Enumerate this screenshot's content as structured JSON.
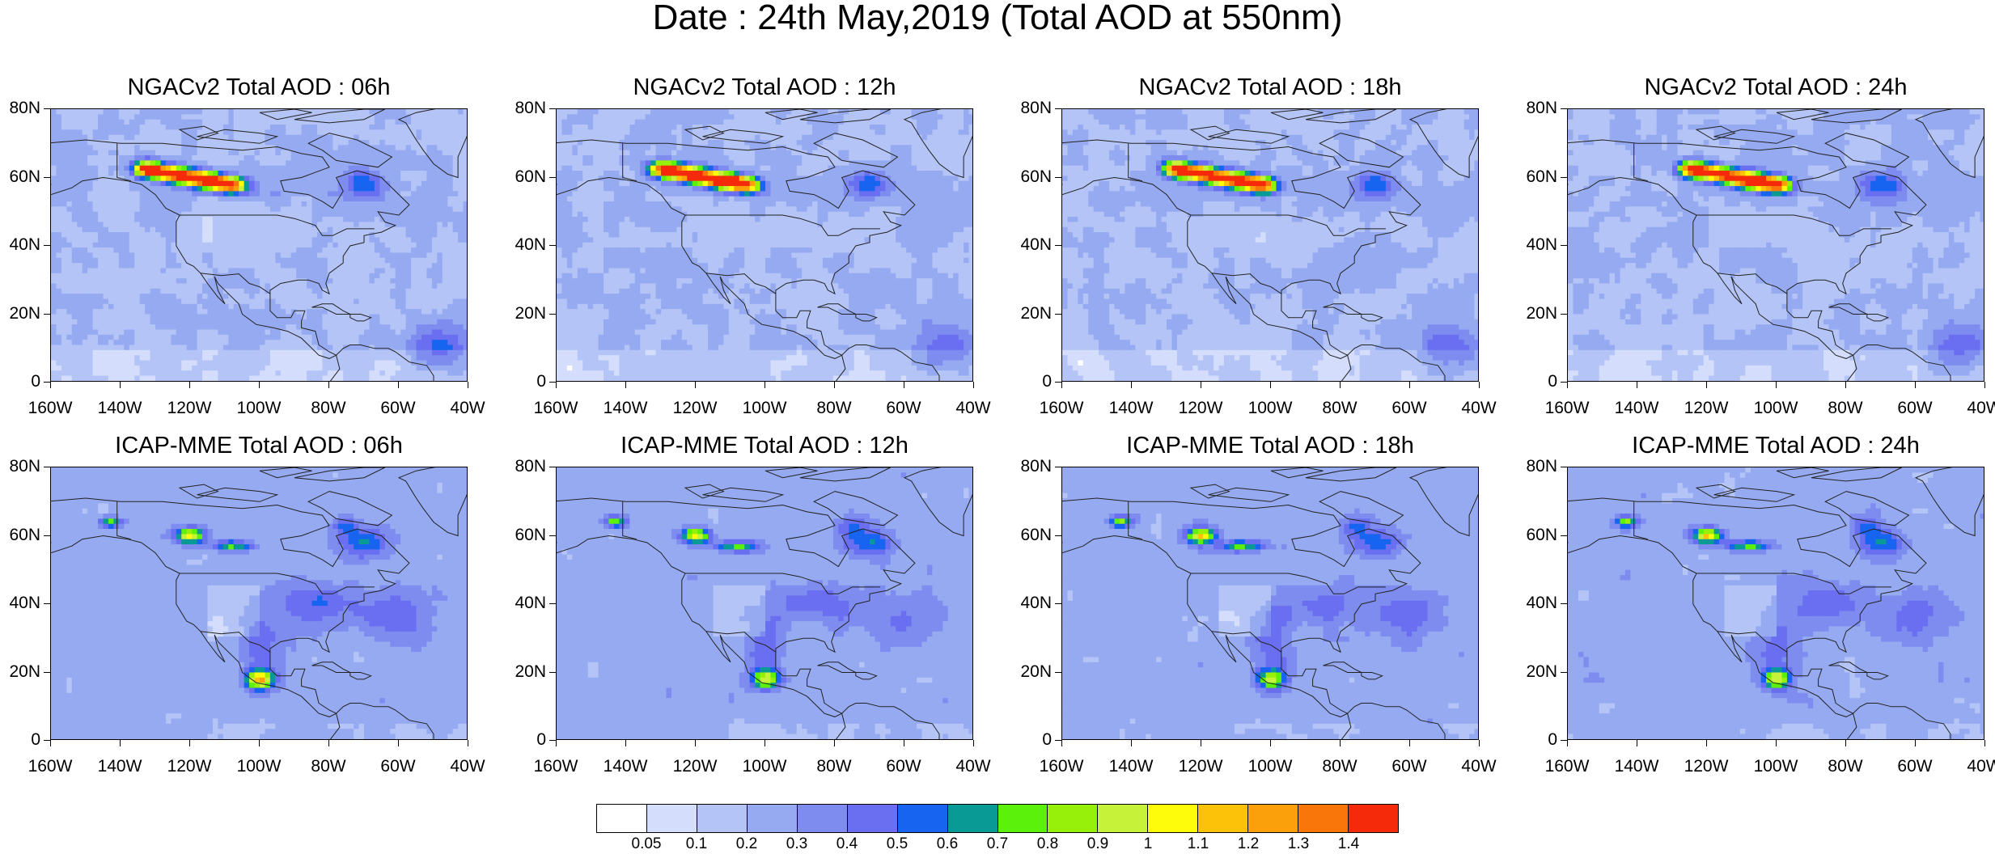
{
  "figure_title": "Date : 24th May,2019 (Total AOD at 550nm)",
  "panels": [
    {
      "title": "NGACv2 Total AOD : 06h",
      "model": "NGAC",
      "hour": 6
    },
    {
      "title": "NGACv2 Total AOD : 12h",
      "model": "NGAC",
      "hour": 12
    },
    {
      "title": "NGACv2 Total AOD : 18h",
      "model": "NGAC",
      "hour": 18
    },
    {
      "title": "NGACv2 Total AOD : 24h",
      "model": "NGAC",
      "hour": 24
    },
    {
      "title": "ICAP-MME Total AOD : 06h",
      "model": "ICAP",
      "hour": 6
    },
    {
      "title": "ICAP-MME Total AOD : 12h",
      "model": "ICAP",
      "hour": 12
    },
    {
      "title": "ICAP-MME Total AOD : 18h",
      "model": "ICAP",
      "hour": 18
    },
    {
      "title": "ICAP-MME Total AOD : 24h",
      "model": "ICAP",
      "hour": 24
    }
  ],
  "axes": {
    "lat_labels": [
      "80N",
      "60N",
      "40N",
      "20N",
      "0"
    ],
    "lon_labels": [
      "160W",
      "140W",
      "120W",
      "100W",
      "80W",
      "60W",
      "40W"
    ]
  },
  "colorbar": {
    "colors": [
      "#ffffff",
      "#d4ddfb",
      "#b4c4f6",
      "#96aaf2",
      "#7e8cf0",
      "#6a6ef0",
      "#1764f0",
      "#0a9a96",
      "#5cf10a",
      "#96f00a",
      "#c6f23a",
      "#fefc0a",
      "#fcc20a",
      "#fba00a",
      "#f8760a",
      "#f52a0a"
    ],
    "labels": [
      "0.05",
      "0.1",
      "0.2",
      "0.3",
      "0.4",
      "0.5",
      "0.6",
      "0.7",
      "0.8",
      "0.9",
      "1",
      "1.1",
      "1.2",
      "1.3",
      "1.4"
    ]
  }
}
